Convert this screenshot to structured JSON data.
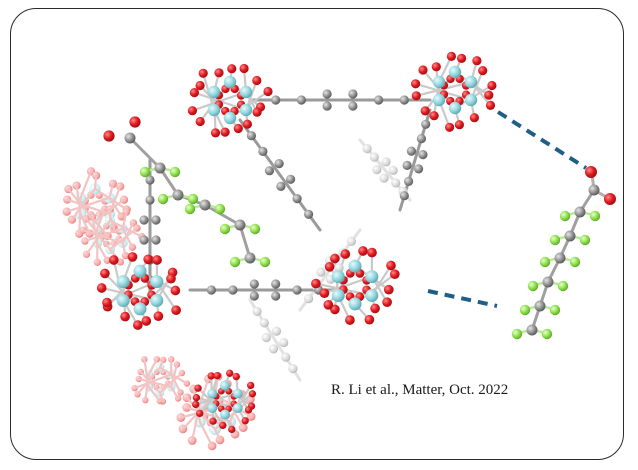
{
  "figure": {
    "caption_citation": "R. Li et al., Matter, Oct. 2022",
    "colors": {
      "zirconium": "#8fd4dc",
      "oxygen": "#e0191f",
      "carbon": "#8c8c8c",
      "fluorine": "#8fe04a",
      "bond_dash": "#1f5f86",
      "frame_border": "#2a2a2a"
    }
  }
}
